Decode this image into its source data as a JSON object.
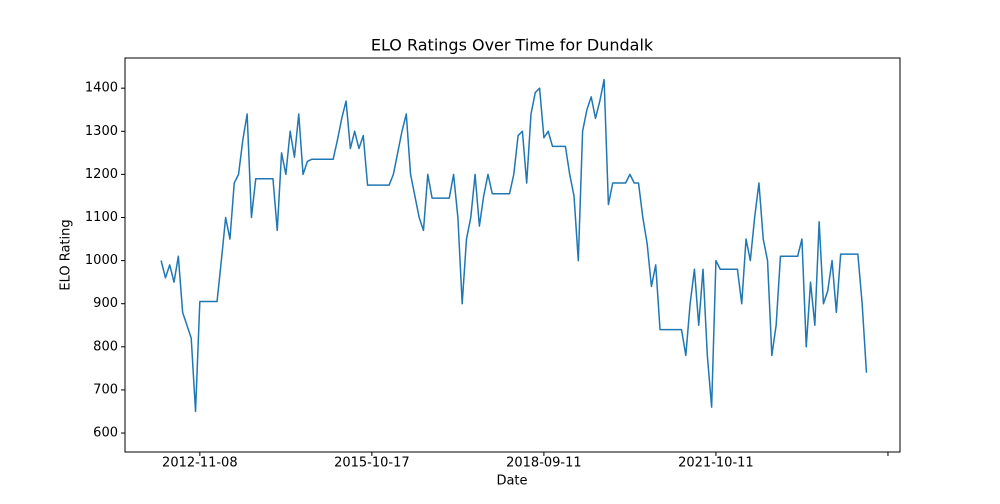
{
  "chart_data": {
    "type": "line",
    "title": "ELO Ratings Over Time for Dundalk",
    "x_label": "Date",
    "y_label": "ELO Rating",
    "color": "#1f77b4",
    "values": [
      1000,
      960,
      990,
      950,
      1010,
      880,
      850,
      820,
      650,
      905,
      905,
      905,
      905,
      905,
      1000,
      1100,
      1050,
      1180,
      1200,
      1280,
      1340,
      1100,
      1190,
      1190,
      1190,
      1190,
      1190,
      1070,
      1250,
      1200,
      1300,
      1240,
      1340,
      1200,
      1230,
      1235,
      1235,
      1235,
      1235,
      1235,
      1235,
      1280,
      1330,
      1370,
      1260,
      1300,
      1260,
      1290,
      1175,
      1175,
      1175,
      1175,
      1175,
      1175,
      1200,
      1250,
      1300,
      1340,
      1200,
      1150,
      1100,
      1070,
      1200,
      1145,
      1145,
      1145,
      1145,
      1145,
      1200,
      1100,
      900,
      1050,
      1100,
      1200,
      1080,
      1150,
      1200,
      1155,
      1155,
      1155,
      1155,
      1155,
      1200,
      1290,
      1300,
      1180,
      1340,
      1390,
      1400,
      1285,
      1300,
      1265,
      1265,
      1265,
      1265,
      1200,
      1150,
      1000,
      1300,
      1350,
      1380,
      1330,
      1370,
      1420,
      1130,
      1180,
      1180,
      1180,
      1180,
      1200,
      1180,
      1180,
      1100,
      1040,
      940,
      990,
      840,
      840,
      840,
      840,
      840,
      840,
      780,
      900,
      980,
      850,
      980,
      780,
      660,
      1000,
      980,
      980,
      980,
      980,
      980,
      900,
      1050,
      1000,
      1100,
      1180,
      1050,
      1000,
      780,
      850,
      1010,
      1010,
      1010,
      1010,
      1010,
      1050,
      800,
      950,
      850,
      1090,
      900,
      930,
      1000,
      880,
      1015,
      1015,
      1015,
      1015,
      1015,
      900,
      740
    ],
    "xlim": [
      -8.4,
      171.8
    ],
    "xticks": [
      {
        "value": 9,
        "label": "2012-11-08"
      },
      {
        "value": 49,
        "label": "2015-10-17"
      },
      {
        "value": 89,
        "label": "2018-09-11"
      },
      {
        "value": 129,
        "label": "2021-10-11"
      },
      {
        "value": 169,
        "label": null
      }
    ],
    "ylim": [
      556,
      1470
    ],
    "yticks": [
      600,
      700,
      800,
      900,
      1000,
      1100,
      1200,
      1300,
      1400
    ],
    "grid": false
  }
}
